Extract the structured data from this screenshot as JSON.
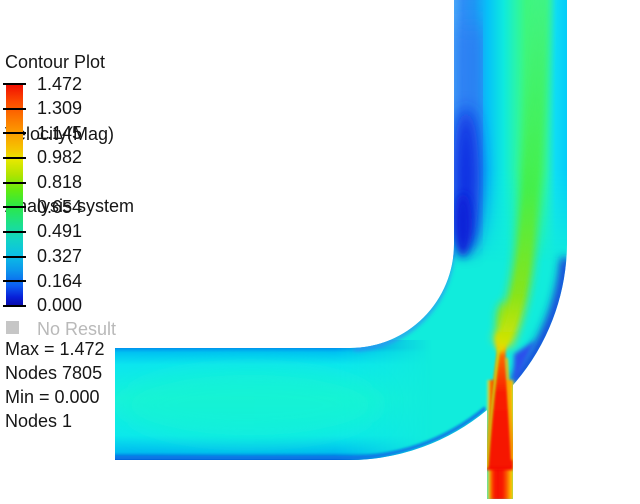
{
  "header": {
    "line1": "Contour Plot",
    "line2": "Velocity(Mag)",
    "line3": "Analysis system"
  },
  "legend": {
    "labels": [
      "1.472",
      "1.309",
      "1.145",
      "0.982",
      "0.818",
      "0.654",
      "0.491",
      "0.327",
      "0.164",
      "0.000"
    ],
    "no_result_label": "No Result",
    "colors": {
      "high": "#f00c02",
      "mid": "#2ce846",
      "low": "#0a0aaa",
      "no_result_box": "#c6c6c6",
      "muted_text": "#b9b9b9",
      "text": "#161616"
    }
  },
  "stats": {
    "max_line": "Max = 1.472",
    "max_nodes_line": "Nodes 7805",
    "min_line": "Min = 0.000",
    "min_nodes_line": "Nodes 1"
  },
  "chart_data": {
    "type": "heatmap",
    "title": "Contour Plot",
    "variable": "Velocity(Mag)",
    "dataset": "Analysis system",
    "colorbar_levels": [
      1.472,
      1.309,
      1.145,
      0.982,
      0.818,
      0.654,
      0.491,
      0.327,
      0.164,
      0.0
    ],
    "value_range": [
      0.0,
      1.472
    ],
    "max": {
      "value": 1.472,
      "nodes_label": "Nodes 7805"
    },
    "min": {
      "value": 0.0,
      "nodes_label": "Nodes 1"
    },
    "colormap": "rainbow (dark blue = 0.000, red = 1.472)",
    "legend_position": "left",
    "scene": "90-degree pipe elbow: horizontal inlet at left (cyan, ~0.5) turns upward into vertical outlet at top right; a narrow high-velocity jet (red, ~1.47) enters from a small vertical pipe at the bottom of the bend, diffusing upward into a green streak (~0.8) along the right-center of the vertical pipe; dark blue low-velocity zones (~0.0-0.16) hug the inner wall after the bend and the outer wall near the jet entry"
  }
}
